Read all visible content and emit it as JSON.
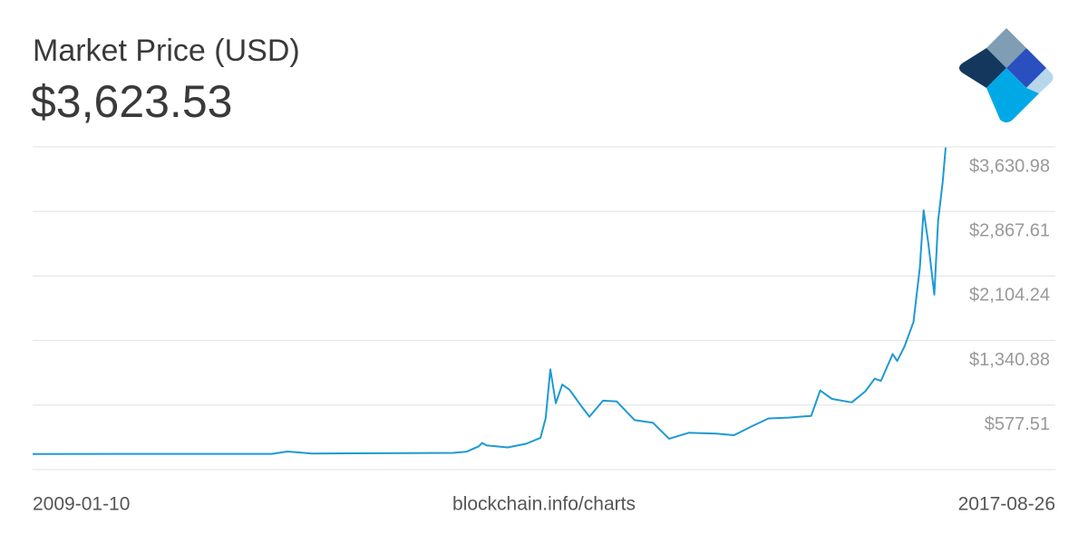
{
  "chart_data": {
    "type": "line",
    "title": "Market Price (USD)",
    "current_value": "$3,623.53",
    "source": "blockchain.info/charts",
    "xlim": [
      "2009-01-10",
      "2017-08-26"
    ],
    "ylim": [
      -185.86,
      3630.98
    ],
    "yticks": [
      {
        "value": 577.51,
        "label": "$577.51"
      },
      {
        "value": 1340.88,
        "label": "$1,340.88"
      },
      {
        "value": 2104.24,
        "label": "$2,104.24"
      },
      {
        "value": 2867.61,
        "label": "$2,867.61"
      },
      {
        "value": 3630.98,
        "label": "$3,630.98"
      }
    ],
    "grid": true,
    "x": [
      "2009-01-10",
      "2011-04-15",
      "2011-06-08",
      "2011-09-01",
      "2012-07-28",
      "2012-12-31",
      "2013-02-16",
      "2013-03-29",
      "2013-04-10",
      "2013-04-25",
      "2013-07-07",
      "2013-09-08",
      "2013-10-28",
      "2013-11-15",
      "2013-12-01",
      "2013-12-20",
      "2014-01-11",
      "2014-02-05",
      "2014-03-15",
      "2014-04-15",
      "2014-06-01",
      "2014-07-18",
      "2014-09-18",
      "2014-11-20",
      "2015-01-15",
      "2015-03-24",
      "2015-06-26",
      "2015-08-27",
      "2015-10-29",
      "2015-12-24",
      "2016-03-02",
      "2016-05-19",
      "2016-06-19",
      "2016-07-30",
      "2016-10-06",
      "2016-11-22",
      "2016-12-24",
      "2017-01-15",
      "2017-02-24",
      "2017-03-12",
      "2017-04-06",
      "2017-05-07",
      "2017-05-29",
      "2017-06-11",
      "2017-06-27",
      "2017-07-18",
      "2017-07-31",
      "2017-08-16",
      "2017-08-26"
    ],
    "series": [
      {
        "name": "Market Price (USD)",
        "color": "#1f99d3",
        "values": [
          0,
          1,
          29,
          5,
          9,
          13,
          27,
          90,
          130,
          100,
          77,
          120,
          190,
          420,
          1000,
          600,
          820,
          760,
          580,
          440,
          630,
          620,
          400,
          370,
          180,
          250,
          240,
          222,
          330,
          420,
          430,
          450,
          750,
          650,
          610,
          740,
          890,
          865,
          1180,
          1100,
          1270,
          1560,
          2200,
          2880,
          2500,
          1883,
          2760,
          3223,
          3623.53
        ]
      }
    ]
  }
}
